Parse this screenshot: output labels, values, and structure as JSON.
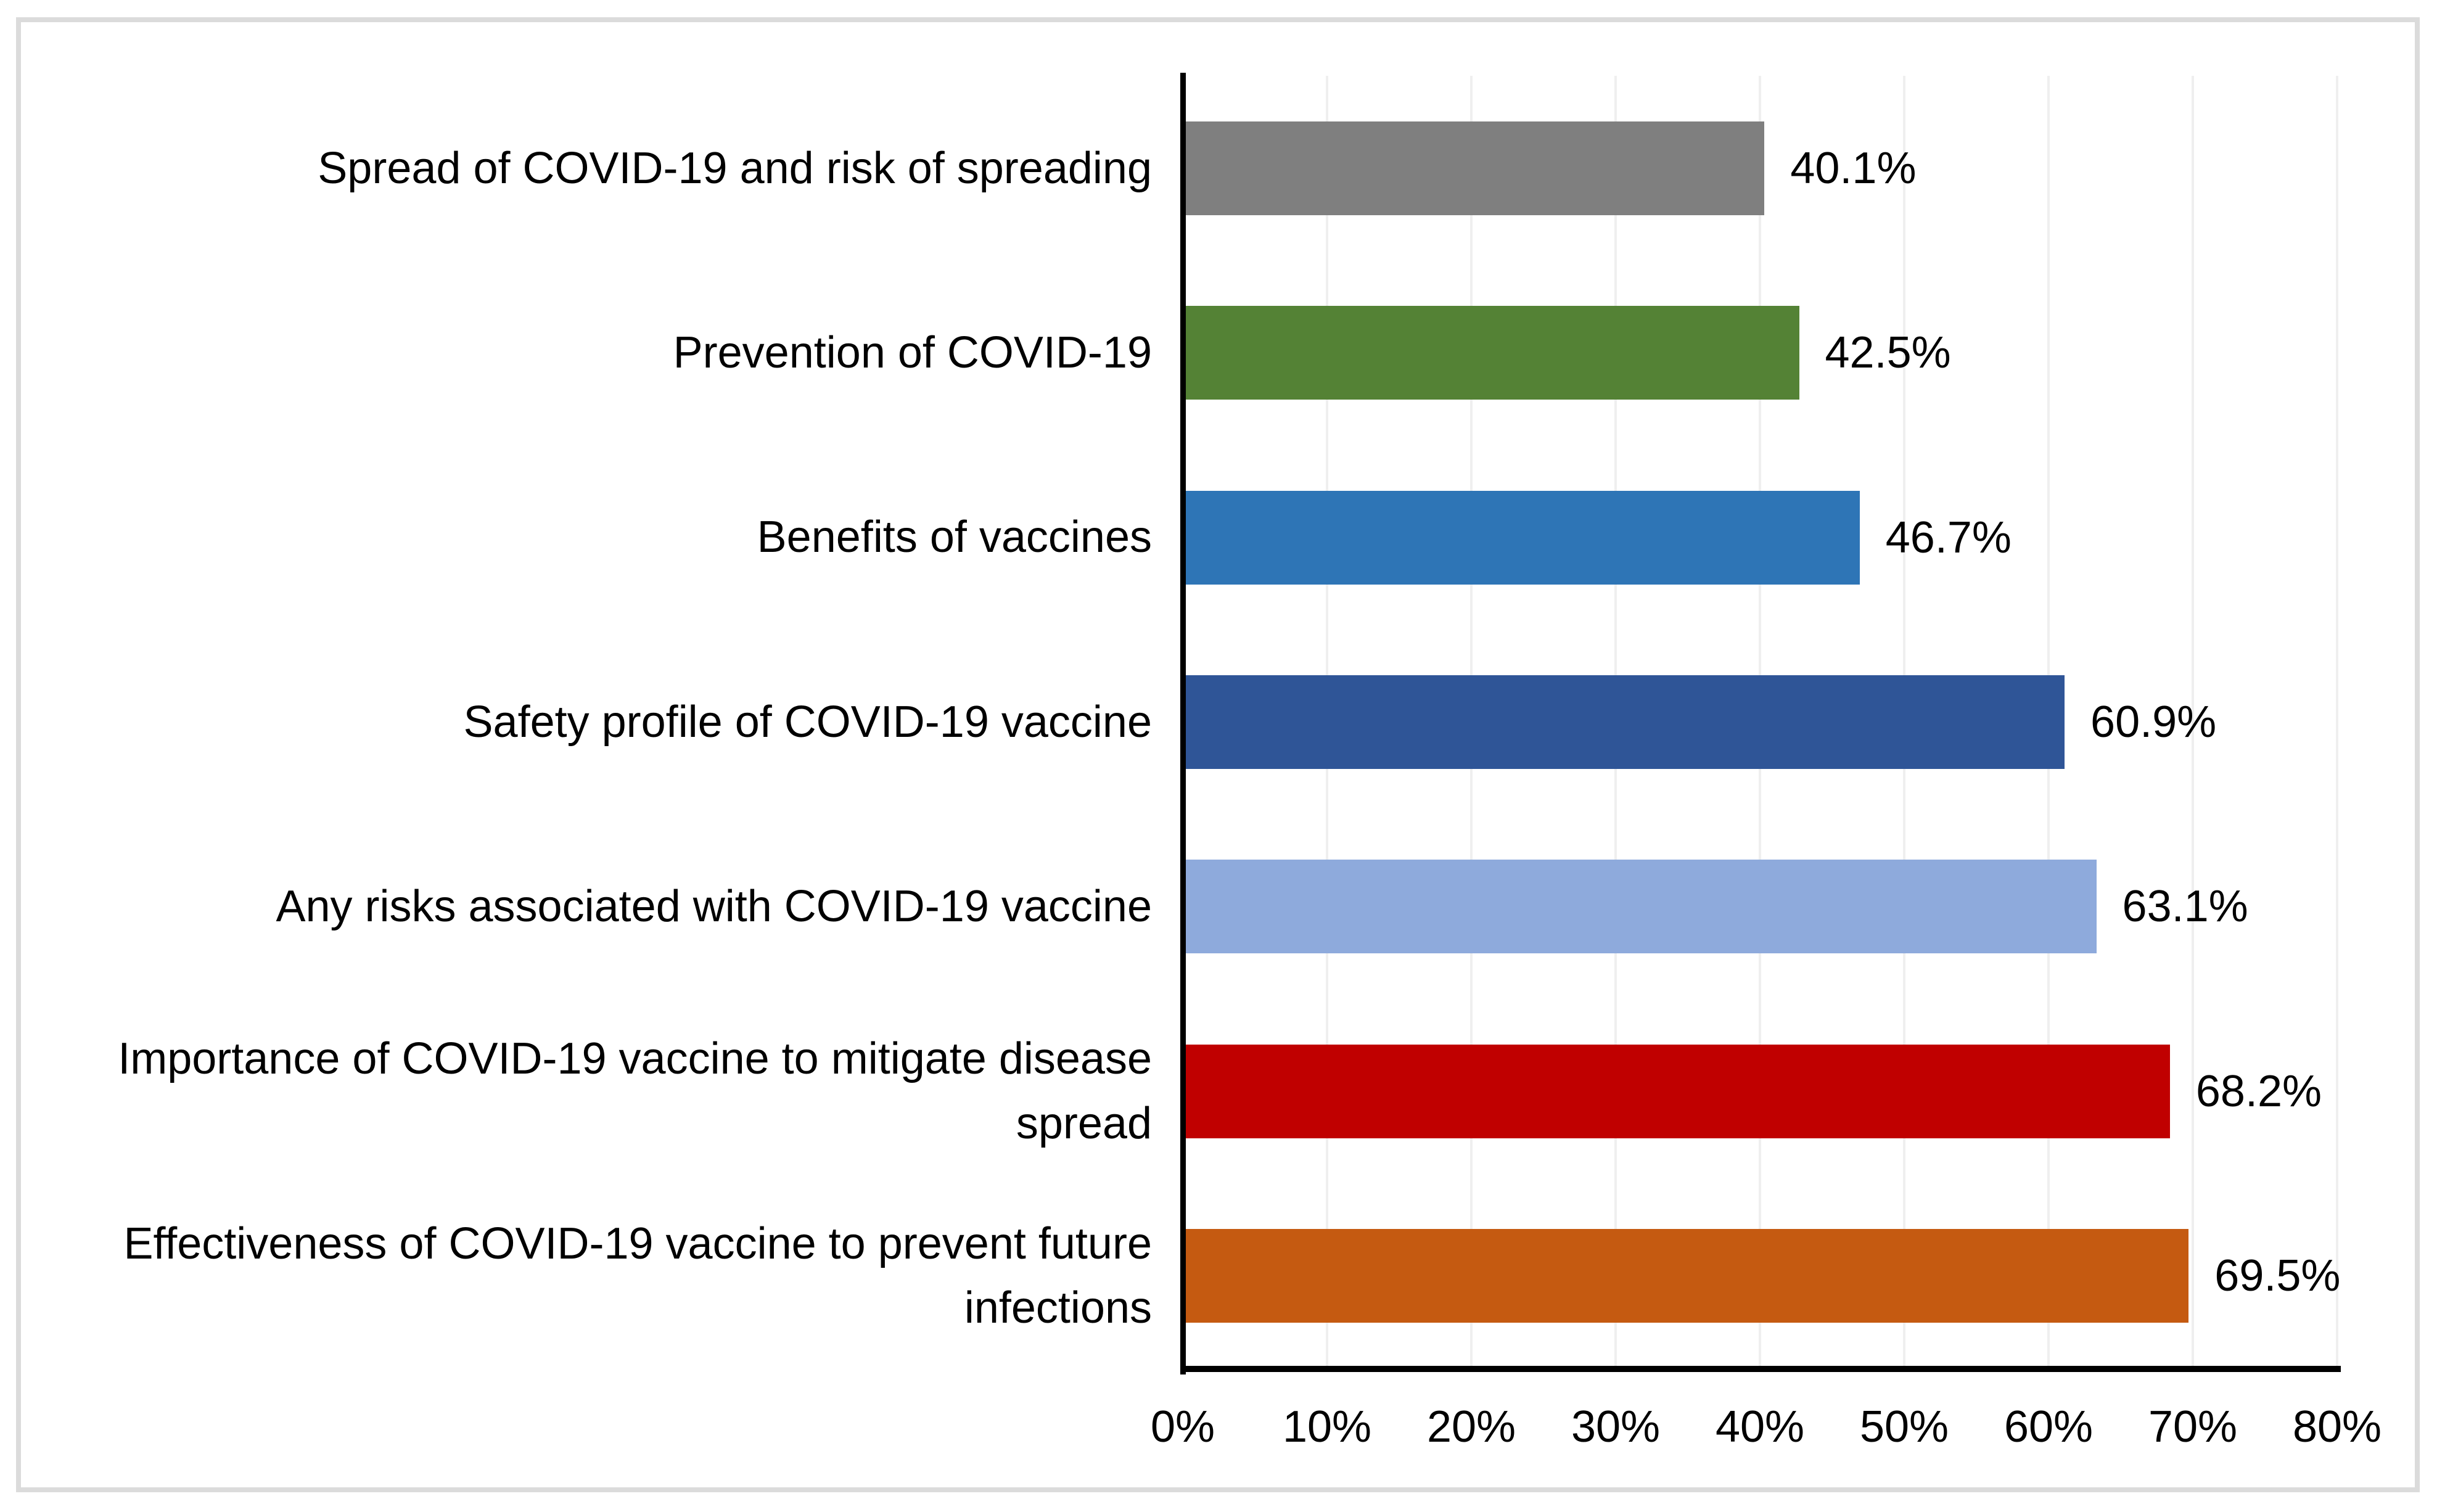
{
  "figure": {
    "background_color": "#ffffff",
    "frame_border_color": "#dbdbdb"
  },
  "chart_data": {
    "type": "bar",
    "orientation": "horizontal",
    "title": "",
    "xlabel": "",
    "ylabel": "",
    "categories": [
      "Spread of COVID-19 and risk of spreading",
      "Prevention of COVID-19",
      "Benefits of vaccines",
      "Safety profile of COVID-19 vaccine",
      "Any risks associated with COVID-19 vaccine",
      "Importance of COVID-19 vaccine to mitigate disease\nspread",
      "Effectiveness of COVID-19 vaccine to prevent future\ninfections"
    ],
    "values": [
      40.1,
      42.5,
      46.7,
      60.9,
      63.1,
      68.2,
      69.5
    ],
    "value_labels": [
      "40.1%",
      "42.5%",
      "46.7%",
      "60.9%",
      "63.1%",
      "68.2%",
      "69.5%"
    ],
    "bar_colors": [
      "#7F7F7F",
      "#548235",
      "#2E75B6",
      "#2F5597",
      "#8EAADC",
      "#C00000",
      "#C55A11"
    ],
    "x_axis": {
      "min": 0,
      "max": 80,
      "tick_step": 10,
      "tick_labels": [
        "0%",
        "10%",
        "20%",
        "30%",
        "40%",
        "50%",
        "60%",
        "70%",
        "80%"
      ]
    },
    "grid": true,
    "legend_position": "none",
    "gridline_color": "#efefef",
    "axis_line_color": "#000000",
    "label_color": "#000000"
  }
}
